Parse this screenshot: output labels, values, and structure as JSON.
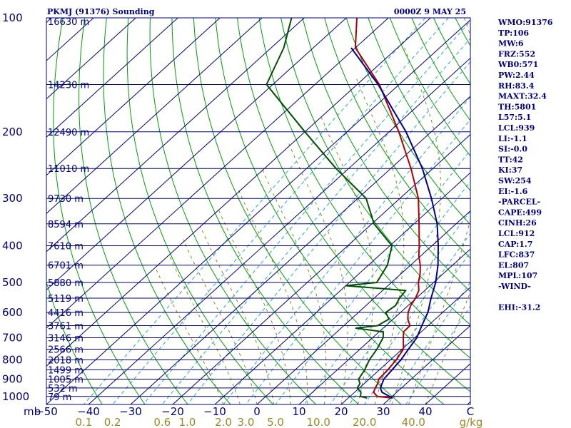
{
  "chart_data": {
    "type": "line",
    "title_left": "PKMJ (91376) Sounding",
    "title_right": "0000Z  9 MAY 25",
    "pressure_levels": [
      100,
      200,
      300,
      400,
      500,
      600,
      700,
      800,
      900,
      1000
    ],
    "x_unit_label": "mb",
    "temperature_ticks": [
      -50,
      -40,
      -30,
      -20,
      -10,
      0,
      10,
      20,
      30,
      40
    ],
    "temperature_last_label": "C",
    "mixing_ratio_ticks": [
      "0.1",
      "0.2",
      "0.6",
      "1.0",
      "2.0",
      "3.0",
      "5.0",
      "10.0",
      "20.0",
      "40.0"
    ],
    "mixing_ratio_unit": "g/kg",
    "height_labels": [
      {
        "p": 100,
        "h": "16630 m"
      },
      {
        "p": 150,
        "h": "14230 m"
      },
      {
        "p": 200,
        "h": "12490 m"
      },
      {
        "p": 250,
        "h": "11010 m"
      },
      {
        "p": 300,
        "h": "9730 m"
      },
      {
        "p": 350,
        "h": "8594 m"
      },
      {
        "p": 400,
        "h": "7610 m"
      },
      {
        "p": 450,
        "h": "6701 m"
      },
      {
        "p": 500,
        "h": "5880 m"
      },
      {
        "p": 550,
        "h": "5119 m"
      },
      {
        "p": 600,
        "h": "4416 m"
      },
      {
        "p": 650,
        "h": "3761 m"
      },
      {
        "p": 700,
        "h": "3146 m"
      },
      {
        "p": 750,
        "h": "2566 m"
      },
      {
        "p": 800,
        "h": "2018 m"
      },
      {
        "p": 850,
        "h": "1499 m"
      },
      {
        "p": 900,
        "h": "1005 m"
      },
      {
        "p": 950,
        "h": "532 m"
      },
      {
        "p": 1000,
        "h": "79 m"
      }
    ],
    "series": [
      {
        "name": "Temperature",
        "color": "#b00000",
        "points": [
          [
            1010,
            30.5
          ],
          [
            1000,
            26.5
          ],
          [
            975,
            24.5
          ],
          [
            950,
            23.8
          ],
          [
            925,
            23.2
          ],
          [
            900,
            22.3
          ],
          [
            850,
            22.0
          ],
          [
            800,
            21.4
          ],
          [
            750,
            20.3
          ],
          [
            700,
            17.3
          ],
          [
            675,
            15.8
          ],
          [
            650,
            15.7
          ],
          [
            625,
            13.5
          ],
          [
            600,
            11.8
          ],
          [
            575,
            10.6
          ],
          [
            550,
            9.8
          ],
          [
            525,
            8.6
          ],
          [
            500,
            6.4
          ],
          [
            475,
            4.6
          ],
          [
            450,
            2.3
          ],
          [
            425,
            -0.5
          ],
          [
            400,
            -3.0
          ],
          [
            350,
            -8.8
          ],
          [
            300,
            -15.6
          ],
          [
            250,
            -25.2
          ],
          [
            200,
            -37.7
          ],
          [
            150,
            -54.7
          ],
          [
            120,
            -70.0
          ],
          [
            100,
            -77.5
          ]
        ]
      },
      {
        "name": "Dewpoint",
        "color": "#005000",
        "points": [
          [
            1010,
            24.5
          ],
          [
            1000,
            22.5
          ],
          [
            975,
            21.5
          ],
          [
            950,
            19.5
          ],
          [
            925,
            19.0
          ],
          [
            900,
            17.5
          ],
          [
            850,
            16.5
          ],
          [
            800,
            15.0
          ],
          [
            750,
            14.0
          ],
          [
            700,
            12.5
          ],
          [
            675,
            11.0
          ],
          [
            660,
            3.5
          ],
          [
            650,
            8.0
          ],
          [
            625,
            9.0
          ],
          [
            600,
            6.5
          ],
          [
            575,
            7.0
          ],
          [
            550,
            6.0
          ],
          [
            525,
            5.5
          ],
          [
            510,
            -10.0
          ],
          [
            500,
            -3.5
          ],
          [
            450,
            -5.5
          ],
          [
            400,
            -9.5
          ],
          [
            350,
            -19.5
          ],
          [
            300,
            -28.0
          ],
          [
            250,
            -43.0
          ],
          [
            200,
            -60.0
          ],
          [
            150,
            -81.5
          ],
          [
            120,
            -87.0
          ],
          [
            100,
            -93.0
          ]
        ]
      },
      {
        "name": "Parcel",
        "color": "#000090",
        "points": [
          [
            1010,
            30.5
          ],
          [
            975,
            26.5
          ],
          [
            950,
            25.0
          ],
          [
            900,
            23.5
          ],
          [
            850,
            23.0
          ],
          [
            800,
            22.5
          ],
          [
            750,
            21.5
          ],
          [
            700,
            20.5
          ],
          [
            650,
            18.5
          ],
          [
            600,
            16.5
          ],
          [
            550,
            13.5
          ],
          [
            500,
            10.5
          ],
          [
            450,
            6.5
          ],
          [
            400,
            1.5
          ],
          [
            350,
            -4.5
          ],
          [
            300,
            -12.5
          ],
          [
            250,
            -22.5
          ],
          [
            200,
            -36.0
          ],
          [
            150,
            -55.0
          ],
          [
            120,
            -71.0
          ]
        ]
      }
    ]
  },
  "indices": [
    "WMO:91376",
    "TP:106",
    "MW:6",
    "FRZ:552",
    "WB0:571",
    "PW:2.44",
    "RH:83.4",
    "MAXT:32.4",
    "TH:5801",
    "L57:5.1",
    "LCL:939",
    "LI:-1.1",
    "SI:-0.0",
    "TT:42",
    "KI:37",
    "SW:254",
    "EI:-1.6",
    "-PARCEL-",
    "CAPE:499",
    "CINH:26",
    "LCL:912",
    "CAP:1.7",
    "LFC:837",
    "EL:807",
    "MPL:107",
    "-WIND-",
    "",
    "EHI:-31.2"
  ],
  "colors": {
    "frame": "#000080",
    "isobar": "#000080",
    "isotherm": "#000080",
    "dry_adiabat": "#00a000",
    "moist_adiabat": "#8a8a1a",
    "mixing_ratio": "#2aa8c8"
  }
}
